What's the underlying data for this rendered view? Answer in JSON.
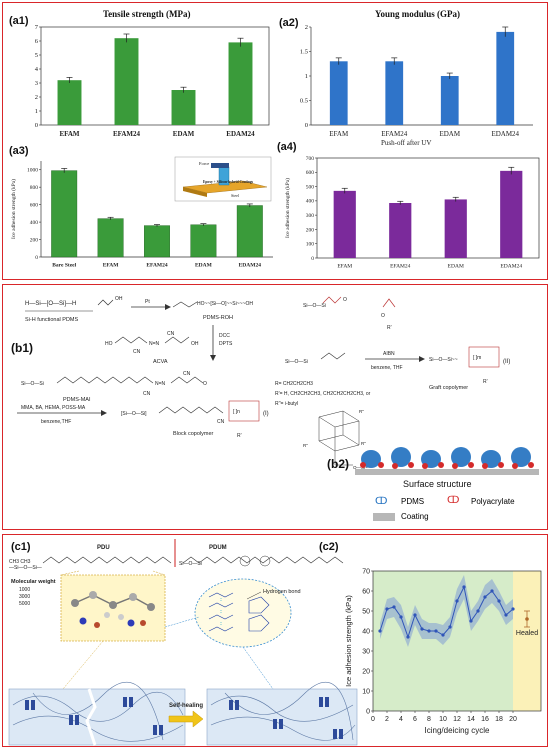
{
  "panel_a": {
    "a1": {
      "label": "(a1)",
      "title": "Tensile strength (MPa)"
    },
    "a2": {
      "label": "(a2)",
      "title": "Young modulus (GPa)"
    },
    "a3": {
      "label": "(a3)",
      "ylabel": "Ice adhesion strength (kPa)",
      "inset_labels": [
        "Force",
        "Epoxy + Silicon-hybrid Coatings",
        "Steel"
      ]
    },
    "a4": {
      "label": "(a4)",
      "title": "Push-off after UV",
      "ylabel": "Ice adhesion strength (kPa)"
    }
  },
  "panel_b": {
    "b1": {
      "label": "(b1)",
      "si_h_pdms": "Si-H functional PDMS",
      "pdms_roh": "PDMS-ROH",
      "dcc": "DCC",
      "dpts": "DPTS",
      "acva": "ACVA",
      "pdms_mai": "PDMS-MAI",
      "aibn": "AIBN",
      "solvent_top": "benzene, THF",
      "graft": "Graft copolymer",
      "graft_num": "(II)",
      "monomers": "MMA, BA, HEMA, POSS-MA",
      "solvent_bottom": "benzene,THF",
      "block": "Block copolymer",
      "block_num": "(I)",
      "r_defs": [
        "R= CH2CH2CH3",
        "R'= H, CH2CH2CH3, CH2CH2CH2CH3, or",
        "R''= i-butyl"
      ]
    },
    "b2": {
      "label": "(b2)",
      "title": "Surface structure",
      "legend": [
        "PDMS",
        "Polyacrylate",
        "Coating"
      ]
    }
  },
  "panel_c": {
    "c1": {
      "label": "(c1)",
      "pdu": "PDU",
      "pdum": "PDUM",
      "mw_title": "Molecular weight",
      "mw_values": [
        "1000",
        "3000",
        "5000"
      ],
      "hbond": "Hydrogen bond",
      "self_healing": "Self-healing"
    },
    "c2": {
      "label": "(c2)",
      "ylabel": "Ice adhesion strength (kPa)",
      "xlabel": "Icing/deicing cycle",
      "healed": "Healed"
    }
  },
  "chart_data": [
    {
      "type": "bar",
      "title": "Tensile strength (MPa)",
      "categories": [
        "EFAM",
        "EFAM24",
        "EDAM",
        "EDAM24"
      ],
      "values": [
        3.2,
        6.2,
        2.5,
        5.9
      ],
      "errors": [
        0.2,
        0.3,
        0.2,
        0.3
      ],
      "ylim": [
        0,
        7
      ],
      "yticks": [
        0,
        1,
        2,
        3,
        4,
        5,
        6,
        7
      ],
      "color": "#3a9b3a"
    },
    {
      "type": "bar",
      "title": "Young modulus (GPa)",
      "categories": [
        "EFAM",
        "EFAM24",
        "EDAM",
        "EDAM24"
      ],
      "values": [
        1.3,
        1.3,
        1.0,
        1.9
      ],
      "errors": [
        0.07,
        0.07,
        0.06,
        0.1
      ],
      "ylim": [
        0,
        2
      ],
      "yticks": [
        0,
        0.5,
        1,
        1.5,
        2
      ],
      "color": "#2f74c9"
    },
    {
      "type": "bar",
      "ylabel": "Ice adhesion strength (kPa)",
      "categories": [
        "Bare Steel",
        "EFAM",
        "EFAM24",
        "EDAM",
        "EDAM24"
      ],
      "values": [
        990,
        440,
        360,
        370,
        590
      ],
      "errors": [
        25,
        15,
        12,
        12,
        18
      ],
      "ylim": [
        0,
        1100
      ],
      "yticks": [
        0,
        200,
        400,
        600,
        800,
        1000
      ],
      "color": "#3a9b3a"
    },
    {
      "type": "bar",
      "title": "Push-off after UV",
      "ylabel": "Ice adhesion strength (kPa)",
      "categories": [
        "EFAM",
        "EFAM24",
        "EDAM",
        "EDAM24"
      ],
      "values": [
        470,
        385,
        410,
        610
      ],
      "errors": [
        18,
        12,
        15,
        25
      ],
      "ylim": [
        0,
        700
      ],
      "yticks": [
        0,
        100,
        200,
        300,
        400,
        500,
        600,
        700
      ],
      "color": "#7b2a9b"
    },
    {
      "type": "line",
      "ylabel": "Ice adhesion strength (kPa)",
      "xlabel": "Icing/deicing cycle",
      "xlim": [
        0,
        24
      ],
      "ylim": [
        0,
        70
      ],
      "xticks": [
        0,
        2,
        4,
        6,
        8,
        10,
        12,
        14,
        16,
        18,
        20
      ],
      "yticks": [
        0,
        10,
        20,
        30,
        40,
        50,
        60,
        70
      ],
      "series": [
        {
          "x": [
            1,
            2,
            3,
            4,
            5,
            6,
            7,
            8,
            9,
            10,
            11,
            12,
            13,
            14,
            15,
            16,
            17,
            18,
            19,
            20
          ],
          "y": [
            40,
            51,
            52,
            47,
            37,
            48,
            41,
            40,
            40,
            38,
            42,
            55,
            62,
            45,
            50,
            57,
            60,
            55,
            48,
            51
          ],
          "err": [
            4,
            5,
            5,
            6,
            5,
            5,
            5,
            4,
            4,
            5,
            5,
            6,
            6,
            5,
            5,
            6,
            6,
            5,
            5,
            5
          ]
        }
      ],
      "healed": {
        "x": 22,
        "y": 46,
        "err": 4
      }
    }
  ]
}
